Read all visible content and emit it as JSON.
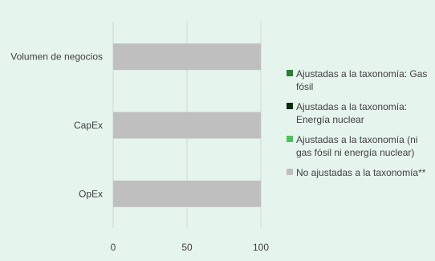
{
  "chart_data": {
    "type": "bar",
    "orientation": "horizontal",
    "stacked": true,
    "categories": [
      "Volumen de negocios",
      "CapEx",
      "OpEx"
    ],
    "series": [
      {
        "name": "Ajustadas a la taxonomía: Gas fósil",
        "color": "#2e7d32",
        "values": [
          0,
          0,
          0
        ]
      },
      {
        "name": "Ajustadas a la taxonomía: Energía nuclear",
        "color": "#0b2b0f",
        "values": [
          0,
          0,
          0
        ]
      },
      {
        "name": "Ajustadas a la taxonomía (ni gas fósil ni energía nuclear)",
        "color": "#4cc35a",
        "values": [
          0,
          0,
          0
        ]
      },
      {
        "name": "No ajustadas a la taxonomía**",
        "color": "#bfbfbf",
        "values": [
          100,
          100,
          100
        ]
      }
    ],
    "x_ticks": [
      0,
      50,
      100
    ],
    "xlim": [
      0,
      100
    ],
    "title": "",
    "xlabel": "",
    "ylabel": "",
    "grid": "vertical",
    "legend_position": "right"
  }
}
